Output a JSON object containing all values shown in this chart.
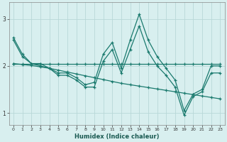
{
  "xlabel": "Humidex (Indice chaleur)",
  "bg_color": "#d8efef",
  "grid_color": "#b8d8d8",
  "line_color": "#1a7a6e",
  "x_values": [
    0,
    1,
    2,
    3,
    4,
    5,
    6,
    7,
    8,
    9,
    10,
    11,
    12,
    13,
    14,
    15,
    16,
    17,
    18,
    19,
    20,
    21,
    22,
    23
  ],
  "series_flat": [
    2.05,
    2.05,
    2.05,
    2.05,
    2.05,
    2.05,
    2.05,
    2.05,
    2.05,
    2.05,
    2.05,
    2.05,
    2.05,
    2.05,
    2.05,
    2.05,
    2.05,
    2.05,
    2.05,
    2.05,
    2.05,
    2.05,
    2.05,
    2.05
  ],
  "series_decline": [
    2.05,
    2.03,
    2.01,
    1.98,
    1.95,
    1.91,
    1.87,
    1.83,
    1.79,
    1.75,
    1.71,
    1.67,
    1.63,
    1.6,
    1.57,
    1.54,
    1.51,
    1.48,
    1.45,
    1.42,
    1.39,
    1.36,
    1.33,
    1.3
  ],
  "series_zigzag1": [
    2.6,
    2.25,
    2.05,
    2.05,
    1.95,
    1.85,
    1.85,
    1.75,
    1.6,
    1.65,
    2.25,
    2.5,
    1.95,
    2.55,
    3.1,
    2.55,
    2.2,
    1.95,
    1.7,
    1.05,
    1.4,
    1.5,
    2.0,
    2.0
  ],
  "series_zigzag2": [
    2.55,
    2.2,
    2.05,
    2.0,
    1.95,
    1.8,
    1.8,
    1.7,
    1.55,
    1.55,
    2.1,
    2.35,
    1.85,
    2.35,
    2.85,
    2.3,
    2.0,
    1.8,
    1.55,
    0.95,
    1.35,
    1.45,
    1.85,
    1.85
  ],
  "xlim": [
    -0.5,
    23.5
  ],
  "ylim": [
    0.75,
    3.35
  ],
  "yticks": [
    1,
    2,
    3
  ],
  "xticks": [
    0,
    1,
    2,
    3,
    4,
    5,
    6,
    7,
    8,
    9,
    10,
    11,
    12,
    13,
    14,
    15,
    16,
    17,
    18,
    19,
    20,
    21,
    22,
    23
  ]
}
